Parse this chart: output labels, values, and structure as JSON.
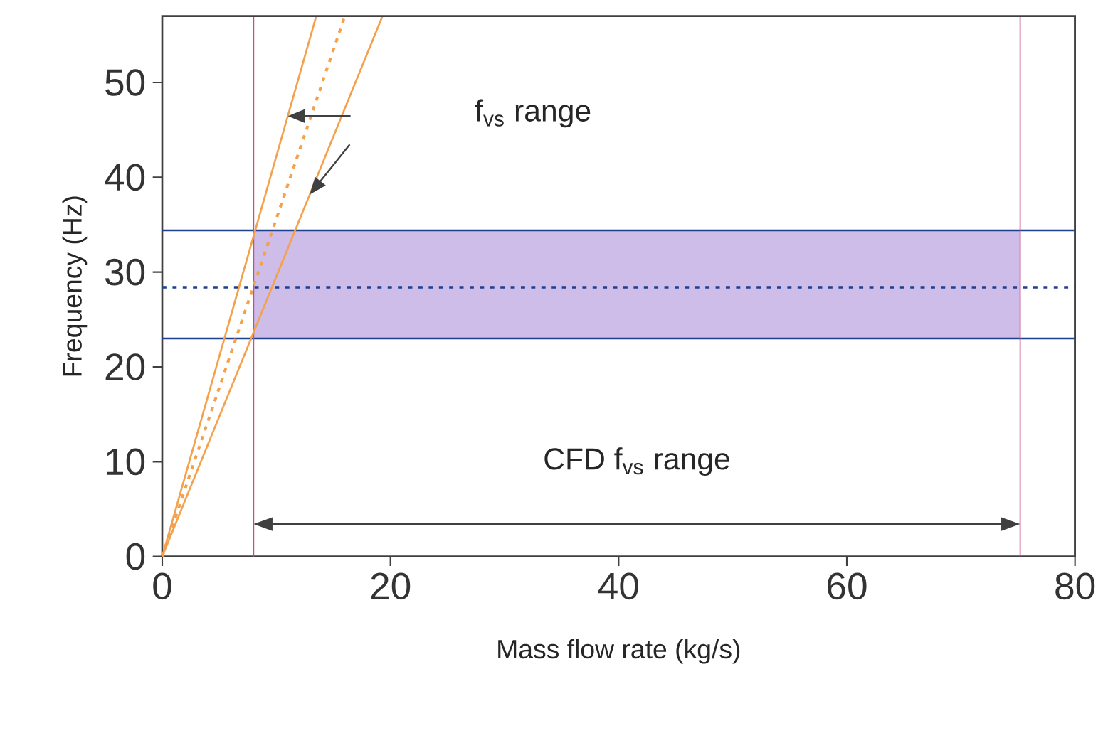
{
  "chart_data": {
    "type": "line",
    "xlabel": "Mass flow rate (kg/s)",
    "ylabel": "Frequency (Hz)",
    "xlim": [
      0,
      80
    ],
    "ylim": [
      0,
      57
    ],
    "xticks": [
      0,
      20,
      40,
      60,
      80
    ],
    "yticks": [
      0,
      10,
      20,
      30,
      40,
      50
    ],
    "series": [
      {
        "x": [
          0,
          13.5
        ],
        "values": [
          0,
          57
        ],
        "color": "#f5a04a",
        "line_style": "solid"
      },
      {
        "x": [
          0,
          16
        ],
        "values": [
          0,
          57
        ],
        "color": "#f5a04a",
        "line_style": "dotted"
      },
      {
        "x": [
          0,
          19.3
        ],
        "values": [
          0,
          57
        ],
        "color": "#f5a04a",
        "line_style": "solid"
      }
    ],
    "ref_lines": [
      {
        "axis": "y",
        "value": 34.4,
        "color": "#1f3f8f",
        "line_style": "solid"
      },
      {
        "axis": "y",
        "value": 23,
        "color": "#1f3f8f",
        "line_style": "solid"
      },
      {
        "axis": "y",
        "value": 28.4,
        "color": "#1f3f8f",
        "line_style": "dotted"
      },
      {
        "axis": "x",
        "value": 8,
        "color": "#c0508a",
        "line_style": "solid"
      },
      {
        "axis": "x",
        "value": 75.2,
        "color": "#c0508a",
        "line_style": "solid"
      }
    ],
    "bands": [
      {
        "axis": "y",
        "from": 23,
        "to": 34.4,
        "color": "#cdbde8"
      }
    ],
    "annotations": [
      "f$_{vs}$ range",
      "CFD f$_{vs}$ range"
    ],
    "marker": "none"
  }
}
